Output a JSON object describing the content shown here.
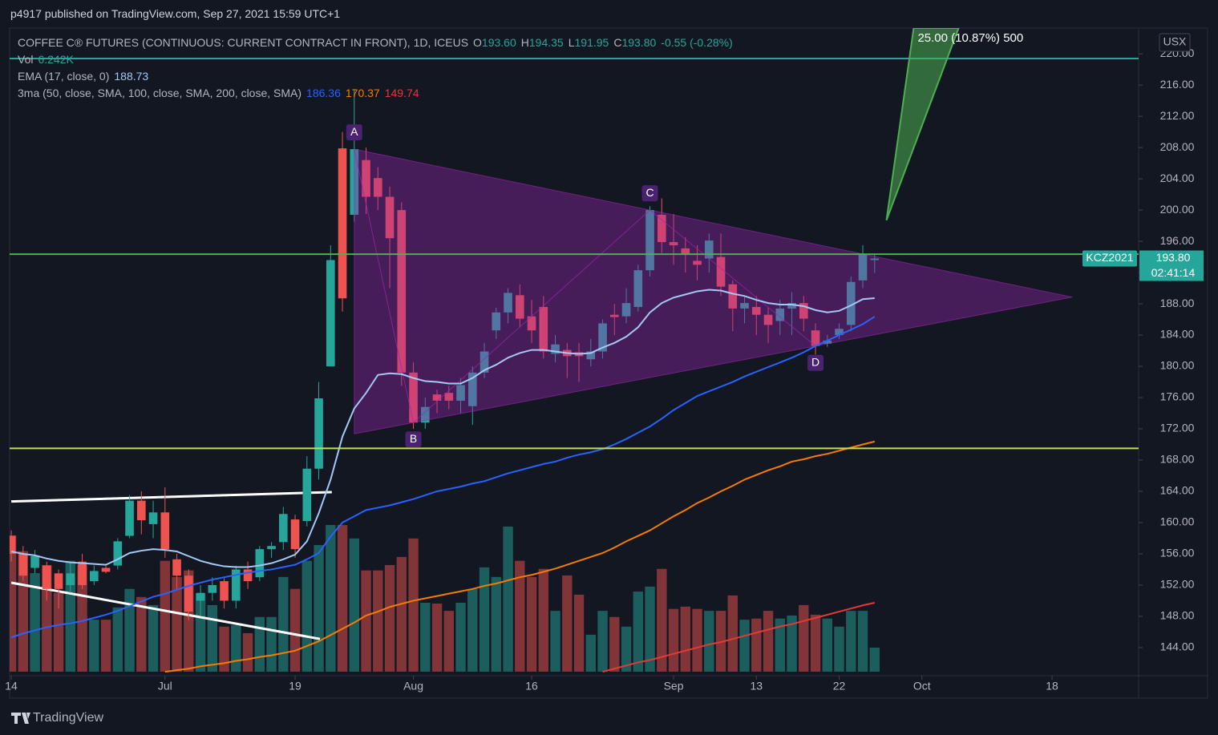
{
  "header": {
    "publisher": "p4917 published on TradingView.com, Sep 27, 2021 15:59 UTC+1"
  },
  "chart_data": {
    "type": "candlestick",
    "title": "COFFEE C® FUTURES (CONTINUOUS: CURRENT CONTRACT IN FRONT), 1D, ICEUS",
    "ohlc_legend": [
      {
        "key": "O",
        "text": "193.60"
      },
      {
        "key": "H",
        "text": "194.35"
      },
      {
        "key": "L",
        "text": "191.95"
      },
      {
        "key": "C",
        "text": "193.80"
      }
    ],
    "change_text": "-0.55 (-0.28%)",
    "currency": "USX",
    "up_color": "#26a69a",
    "down_color": "#ef5350",
    "open": [
      158.3,
      156,
      154.2,
      154.5,
      153.5,
      152,
      155,
      152.5,
      154.2,
      154.5,
      158.3,
      162.8,
      159.8,
      161.3,
      155.3,
      153.2,
      150,
      151,
      152.5,
      150,
      154,
      153,
      156.6,
      157.5,
      160.4,
      160.2,
      166.9,
      180,
      207.9,
      199.4,
      206.4,
      204.1,
      201.7,
      200,
      179.2,
      172.8,
      176.4,
      176.6,
      175.6,
      174.9,
      179.2,
      184.6,
      186.9,
      189.1,
      186.4,
      187.6,
      181.6,
      182.1,
      181.8,
      180.9,
      181.9,
      186.6,
      186.4,
      187.6,
      192.3,
      199.4,
      195.9,
      195.1,
      193.5,
      193.8,
      194,
      190.5,
      187.4,
      187.6,
      186.6,
      185.8,
      187.4,
      188.1,
      184.6,
      182.9,
      184,
      185.3,
      191,
      193.6
    ],
    "high": [
      159,
      157,
      156.5,
      155,
      154,
      155,
      156,
      154.5,
      154.5,
      158,
      163.5,
      164,
      162.8,
      164.5,
      156,
      154,
      152,
      153,
      153,
      154.5,
      155,
      157,
      157.5,
      162,
      161,
      168.5,
      178,
      195.5,
      210,
      215.5,
      208,
      205.5,
      203,
      201,
      180.5,
      176,
      177,
      177.5,
      178.5,
      180,
      183,
      187.5,
      190,
      190.5,
      188.5,
      189,
      184,
      183,
      183,
      183.5,
      186,
      188,
      190,
      193,
      200.5,
      201.5,
      199.5,
      196.5,
      195.5,
      197,
      197,
      191,
      189,
      189,
      187.5,
      188.5,
      189.5,
      189,
      185.5,
      184,
      185.5,
      191.5,
      195.5,
      194.35
    ],
    "low": [
      155,
      152.5,
      153.5,
      150,
      149,
      151,
      151.5,
      152,
      153.5,
      154,
      158,
      158.5,
      158,
      155.5,
      151.5,
      147.5,
      148,
      150,
      149,
      149,
      151.5,
      152.5,
      155.5,
      156.5,
      155.5,
      159.5,
      165.5,
      180,
      187,
      198.5,
      199.5,
      200,
      190,
      177.5,
      172,
      172,
      174,
      174.5,
      174,
      172.5,
      178.5,
      183.5,
      185.5,
      185,
      183,
      181,
      180.5,
      178.5,
      178,
      180,
      181,
      184,
      185.5,
      187,
      191.5,
      194.5,
      193,
      192,
      191,
      192,
      189,
      184.5,
      185.5,
      184,
      183,
      184,
      184,
      184.5,
      181.5,
      182.5,
      183.5,
      184.5,
      190,
      191.95
    ],
    "close": [
      156,
      153.2,
      155.7,
      151.5,
      151.5,
      153.5,
      152,
      153.8,
      153.7,
      157.6,
      162.8,
      160.3,
      161.3,
      156.6,
      153.2,
      148.6,
      151,
      152,
      150,
      154,
      152.5,
      156.6,
      157,
      161.1,
      156.6,
      166.9,
      175.9,
      193.6,
      188.7,
      207.8,
      201.7,
      201.7,
      196.4,
      179.2,
      172.8,
      174.8,
      175.6,
      175.6,
      177.6,
      179.2,
      181.9,
      186.9,
      189.4,
      186.1,
      184.6,
      181.9,
      182.8,
      181.3,
      181.3,
      181.9,
      185.5,
      186.3,
      188.1,
      192.3,
      200,
      195.9,
      195.5,
      194.3,
      193,
      196.1,
      190.2,
      187.4,
      188.1,
      186.6,
      185.3,
      187.4,
      188.1,
      186.1,
      182.6,
      183.3,
      184.8,
      190.8,
      194.3,
      193.8
    ],
    "volume": {
      "name": "Vol",
      "value_label": "6.242K",
      "opacity": 0.5,
      "values": [
        35400,
        31300,
        25600,
        27700,
        20400,
        28800,
        27700,
        13500,
        13500,
        16700,
        21500,
        19400,
        17300,
        28800,
        24600,
        26300,
        20400,
        17300,
        11700,
        12100,
        10000,
        14200,
        14200,
        24600,
        21500,
        28800,
        32900,
        38100,
        38100,
        34600,
        26300,
        26300,
        27700,
        29800,
        34600,
        17900,
        17700,
        15800,
        17900,
        21500,
        27100,
        24600,
        37700,
        28800,
        24600,
        26700,
        15800,
        25000,
        20000,
        9600,
        15800,
        14200,
        11700,
        20800,
        22100,
        26700,
        16300,
        16900,
        16300,
        15800,
        15800,
        19800,
        13500,
        13800,
        15800,
        13800,
        14600,
        17300,
        14800,
        13800,
        11700,
        15800,
        15800,
        6242
      ]
    },
    "indicators": [
      {
        "name": "EMA (17, close, 0)",
        "series": [
          {
            "color": "#a5c8f5",
            "value_label": "188.73",
            "values": [
              156.3,
              156.0,
              155.8,
              155.4,
              155.1,
              154.9,
              154.8,
              154.7,
              154.6,
              155.3,
              156.1,
              156.4,
              156.6,
              156.5,
              156.3,
              155.7,
              155.1,
              154.7,
              154.4,
              154.3,
              154.3,
              154.5,
              154.8,
              155.3,
              155.9,
              157.6,
              161.2,
              165.5,
              171.0,
              174.6,
              176.6,
              178.9,
              179.1,
              179.0,
              178.5,
              178.1,
              178.0,
              177.8,
              177.8,
              178.5,
              179.5,
              180.2,
              181.1,
              181.7,
              182.1,
              182.1,
              181.9,
              181.7,
              181.6,
              181.7,
              182.4,
              183.0,
              183.8,
              185.0,
              186.9,
              188.1,
              188.8,
              189.2,
              189.6,
              189.8,
              189.7,
              189.3,
              189.0,
              188.5,
              188.1,
              187.9,
              187.9,
              187.7,
              187.2,
              186.9,
              187.1,
              187.8,
              188.6,
              188.73
            ]
          }
        ]
      },
      {
        "name": "3ma (50, close, SMA, 100, close, SMA, 200, close, SMA)",
        "series": [
          {
            "color": "#2962ff",
            "value_label": "186.36",
            "values": [
              145.3,
              145.8,
              146.2,
              146.6,
              146.9,
              147.1,
              147.4,
              147.8,
              148.2,
              148.7,
              149.3,
              149.9,
              150.5,
              150.9,
              151.4,
              151.9,
              152.3,
              152.7,
              153.0,
              153.3,
              153.6,
              153.8,
              154.0,
              154.3,
              154.6,
              155.3,
              156.1,
              158.2,
              160.0,
              160.8,
              161.6,
              161.9,
              162.2,
              162.6,
              163.0,
              163.5,
              164.0,
              164.3,
              164.6,
              165.0,
              165.3,
              165.8,
              166.3,
              166.7,
              167.1,
              167.5,
              167.8,
              168.3,
              168.7,
              169.0,
              169.4,
              170.0,
              170.7,
              171.5,
              172.3,
              173.3,
              174.4,
              175.3,
              176.2,
              176.8,
              177.4,
              178.0,
              178.7,
              179.3,
              179.9,
              180.5,
              181.1,
              181.8,
              182.6,
              183.3,
              184.0,
              184.7,
              185.4,
              186.36
            ]
          },
          {
            "color": "#f57c00",
            "value_label": "170.37",
            "values": [
              null,
              null,
              null,
              null,
              null,
              null,
              null,
              null,
              null,
              null,
              null,
              null,
              null,
              140.9,
              141.1,
              141.3,
              141.6,
              141.8,
              142.0,
              142.3,
              142.5,
              142.8,
              143.0,
              143.3,
              143.6,
              144.2,
              144.8,
              145.6,
              146.4,
              147.2,
              148.1,
              148.6,
              149.2,
              149.6,
              150.0,
              150.3,
              150.6,
              150.9,
              151.2,
              151.5,
              151.9,
              152.2,
              152.6,
              153.0,
              153.3,
              153.7,
              154.1,
              154.6,
              155.1,
              155.6,
              156.1,
              156.8,
              157.6,
              158.3,
              159.0,
              159.9,
              160.8,
              161.6,
              162.5,
              163.2,
              164.0,
              164.7,
              165.5,
              166.1,
              166.7,
              167.2,
              167.8,
              168.1,
              168.5,
              168.8,
              169.2,
              169.6,
              170.0,
              170.37
            ]
          },
          {
            "color": "#e53935",
            "value_label": "149.74",
            "values": [
              null,
              null,
              null,
              null,
              null,
              null,
              null,
              null,
              null,
              null,
              null,
              null,
              null,
              null,
              null,
              null,
              null,
              null,
              null,
              null,
              null,
              null,
              null,
              null,
              null,
              null,
              null,
              null,
              null,
              null,
              null,
              null,
              null,
              null,
              null,
              null,
              null,
              null,
              null,
              null,
              null,
              null,
              null,
              null,
              null,
              null,
              null,
              null,
              null,
              null,
              140.9,
              141.3,
              141.7,
              142.1,
              142.4,
              142.8,
              143.2,
              143.6,
              144.0,
              144.4,
              144.7,
              145.1,
              145.5,
              145.9,
              146.3,
              146.7,
              147.0,
              147.4,
              147.8,
              148.2,
              148.6,
              149.0,
              149.4,
              149.74
            ]
          }
        ]
      }
    ],
    "xlim": [
      -0.14,
      95.32
    ],
    "xticks": [
      {
        "value": 0,
        "label": "14"
      },
      {
        "value": 13,
        "label": "Jul"
      },
      {
        "value": 24,
        "label": "19"
      },
      {
        "value": 34,
        "label": "Aug"
      },
      {
        "value": 44,
        "label": "16"
      },
      {
        "value": 56,
        "label": "Sep"
      },
      {
        "value": 63,
        "label": "13"
      },
      {
        "value": 70,
        "label": "22"
      },
      {
        "value": 77,
        "label": "Oct"
      },
      {
        "value": 88,
        "label": "18"
      }
    ],
    "ylim": [
      140.4,
      223.3
    ],
    "yticks": [
      {
        "value": 144,
        "label": "144.00"
      },
      {
        "value": 148,
        "label": "148.00"
      },
      {
        "value": 152,
        "label": "152.00"
      },
      {
        "value": 156,
        "label": "156.00"
      },
      {
        "value": 160,
        "label": "160.00"
      },
      {
        "value": 164,
        "label": "164.00"
      },
      {
        "value": 168,
        "label": "168.00"
      },
      {
        "value": 172,
        "label": "172.00"
      },
      {
        "value": 176,
        "label": "176.00"
      },
      {
        "value": 180,
        "label": "180.00"
      },
      {
        "value": 184,
        "label": "184.00"
      },
      {
        "value": 188,
        "label": "188.00"
      },
      {
        "value": 192,
        "label": "192.00"
      },
      {
        "value": 196,
        "label": "196.00"
      },
      {
        "value": 200,
        "label": "200.00"
      },
      {
        "value": 204,
        "label": "204.00"
      },
      {
        "value": 208,
        "label": "208.00"
      },
      {
        "value": 212,
        "label": "212.00"
      },
      {
        "value": 216,
        "label": "216.00"
      },
      {
        "value": 220,
        "label": "220.00"
      }
    ],
    "grid": false,
    "price_tag": {
      "symbol": "KCZ2021",
      "price": "193.80",
      "countdown": "02:41:14",
      "color": "#26a69a"
    },
    "levels": [
      {
        "value": 219.4,
        "color": "#26a69a"
      },
      {
        "value": 194.35,
        "color": "#4caf50"
      },
      {
        "value": 169.5,
        "color": "#c6e03a"
      }
    ],
    "trendlines": [
      {
        "color": "#ffffff",
        "x": [
          0,
          27.1
        ],
        "y": [
          162.7,
          163.9
        ]
      },
      {
        "color": "#ffffff",
        "x": [
          0,
          26.1
        ],
        "y": [
          152.3,
          145.1
        ]
      }
    ],
    "pattern": {
      "color": "#9c27b0",
      "points": [
        {
          "label": "A",
          "x": 29,
          "y": 207.8
        },
        {
          "label": "B",
          "x": 34,
          "y": 172.8
        },
        {
          "label": "C",
          "x": 54,
          "y": 200
        },
        {
          "label": "D",
          "x": 68,
          "y": 182.6
        }
      ]
    },
    "projection": {
      "label": "25.00 (10.87%) 500",
      "color": "#4caf50",
      "x": [
        74,
        76.3,
        80.1
      ],
      "y": [
        198.7,
        223.3,
        223.3
      ]
    }
  },
  "footer": {
    "brand": "TradingView"
  }
}
